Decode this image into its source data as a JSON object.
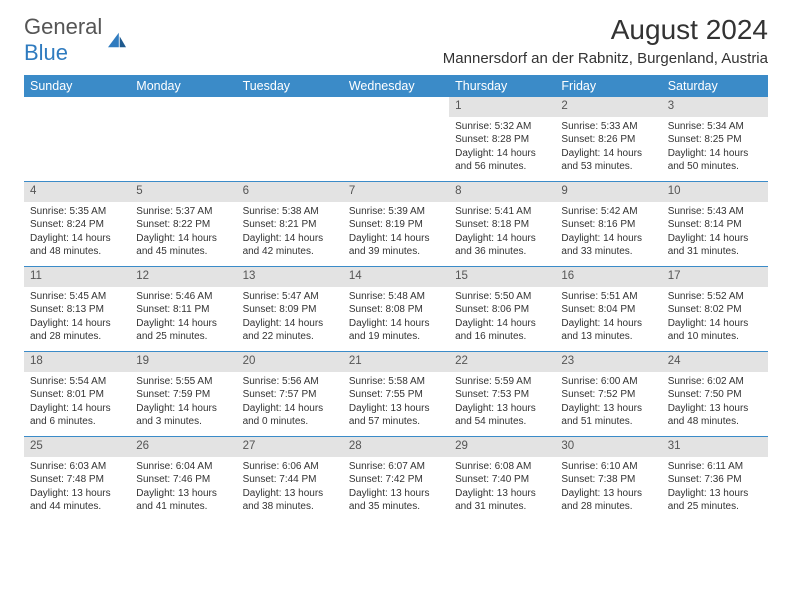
{
  "brand": {
    "part1": "General",
    "part2": "Blue"
  },
  "title": "August 2024",
  "location": "Mannersdorf an der Rabnitz, Burgenland, Austria",
  "colors": {
    "header_bg": "#3b8bc8",
    "daynum_bg": "#e3e3e3",
    "border": "#3b8bc8",
    "text": "#333333",
    "brand_gray": "#555555",
    "brand_blue": "#2f7bbf"
  },
  "weekdays": [
    "Sunday",
    "Monday",
    "Tuesday",
    "Wednesday",
    "Thursday",
    "Friday",
    "Saturday"
  ],
  "weeks": [
    [
      {
        "n": "",
        "empty": true
      },
      {
        "n": "",
        "empty": true
      },
      {
        "n": "",
        "empty": true
      },
      {
        "n": "",
        "empty": true
      },
      {
        "n": "1",
        "sr": "5:32 AM",
        "ss": "8:28 PM",
        "dl": "14 hours and 56 minutes."
      },
      {
        "n": "2",
        "sr": "5:33 AM",
        "ss": "8:26 PM",
        "dl": "14 hours and 53 minutes."
      },
      {
        "n": "3",
        "sr": "5:34 AM",
        "ss": "8:25 PM",
        "dl": "14 hours and 50 minutes."
      }
    ],
    [
      {
        "n": "4",
        "sr": "5:35 AM",
        "ss": "8:24 PM",
        "dl": "14 hours and 48 minutes."
      },
      {
        "n": "5",
        "sr": "5:37 AM",
        "ss": "8:22 PM",
        "dl": "14 hours and 45 minutes."
      },
      {
        "n": "6",
        "sr": "5:38 AM",
        "ss": "8:21 PM",
        "dl": "14 hours and 42 minutes."
      },
      {
        "n": "7",
        "sr": "5:39 AM",
        "ss": "8:19 PM",
        "dl": "14 hours and 39 minutes."
      },
      {
        "n": "8",
        "sr": "5:41 AM",
        "ss": "8:18 PM",
        "dl": "14 hours and 36 minutes."
      },
      {
        "n": "9",
        "sr": "5:42 AM",
        "ss": "8:16 PM",
        "dl": "14 hours and 33 minutes."
      },
      {
        "n": "10",
        "sr": "5:43 AM",
        "ss": "8:14 PM",
        "dl": "14 hours and 31 minutes."
      }
    ],
    [
      {
        "n": "11",
        "sr": "5:45 AM",
        "ss": "8:13 PM",
        "dl": "14 hours and 28 minutes."
      },
      {
        "n": "12",
        "sr": "5:46 AM",
        "ss": "8:11 PM",
        "dl": "14 hours and 25 minutes."
      },
      {
        "n": "13",
        "sr": "5:47 AM",
        "ss": "8:09 PM",
        "dl": "14 hours and 22 minutes."
      },
      {
        "n": "14",
        "sr": "5:48 AM",
        "ss": "8:08 PM",
        "dl": "14 hours and 19 minutes."
      },
      {
        "n": "15",
        "sr": "5:50 AM",
        "ss": "8:06 PM",
        "dl": "14 hours and 16 minutes."
      },
      {
        "n": "16",
        "sr": "5:51 AM",
        "ss": "8:04 PM",
        "dl": "14 hours and 13 minutes."
      },
      {
        "n": "17",
        "sr": "5:52 AM",
        "ss": "8:02 PM",
        "dl": "14 hours and 10 minutes."
      }
    ],
    [
      {
        "n": "18",
        "sr": "5:54 AM",
        "ss": "8:01 PM",
        "dl": "14 hours and 6 minutes."
      },
      {
        "n": "19",
        "sr": "5:55 AM",
        "ss": "7:59 PM",
        "dl": "14 hours and 3 minutes."
      },
      {
        "n": "20",
        "sr": "5:56 AM",
        "ss": "7:57 PM",
        "dl": "14 hours and 0 minutes."
      },
      {
        "n": "21",
        "sr": "5:58 AM",
        "ss": "7:55 PM",
        "dl": "13 hours and 57 minutes."
      },
      {
        "n": "22",
        "sr": "5:59 AM",
        "ss": "7:53 PM",
        "dl": "13 hours and 54 minutes."
      },
      {
        "n": "23",
        "sr": "6:00 AM",
        "ss": "7:52 PM",
        "dl": "13 hours and 51 minutes."
      },
      {
        "n": "24",
        "sr": "6:02 AM",
        "ss": "7:50 PM",
        "dl": "13 hours and 48 minutes."
      }
    ],
    [
      {
        "n": "25",
        "sr": "6:03 AM",
        "ss": "7:48 PM",
        "dl": "13 hours and 44 minutes."
      },
      {
        "n": "26",
        "sr": "6:04 AM",
        "ss": "7:46 PM",
        "dl": "13 hours and 41 minutes."
      },
      {
        "n": "27",
        "sr": "6:06 AM",
        "ss": "7:44 PM",
        "dl": "13 hours and 38 minutes."
      },
      {
        "n": "28",
        "sr": "6:07 AM",
        "ss": "7:42 PM",
        "dl": "13 hours and 35 minutes."
      },
      {
        "n": "29",
        "sr": "6:08 AM",
        "ss": "7:40 PM",
        "dl": "13 hours and 31 minutes."
      },
      {
        "n": "30",
        "sr": "6:10 AM",
        "ss": "7:38 PM",
        "dl": "13 hours and 28 minutes."
      },
      {
        "n": "31",
        "sr": "6:11 AM",
        "ss": "7:36 PM",
        "dl": "13 hours and 25 minutes."
      }
    ]
  ],
  "labels": {
    "sunrise": "Sunrise:",
    "sunset": "Sunset:",
    "daylight": "Daylight:"
  }
}
